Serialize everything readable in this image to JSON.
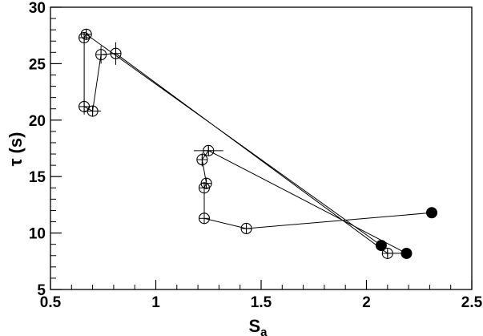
{
  "chart_data": {
    "type": "scatter",
    "title": "",
    "xlabel": "S",
    "xlabel_subscript": "a",
    "ylabel": "τ (s)",
    "xlim": [
      0.5,
      2.5
    ],
    "ylim": [
      5,
      30
    ],
    "x_ticks": [
      {
        "value": 0.5,
        "label": "0.5"
      },
      {
        "value": 1.0,
        "label": "1"
      },
      {
        "value": 1.5,
        "label": "1.5"
      },
      {
        "value": 2.0,
        "label": "2"
      },
      {
        "value": 2.5,
        "label": "2.5"
      }
    ],
    "y_ticks": [
      {
        "value": 5,
        "label": "5"
      },
      {
        "value": 10,
        "label": "10"
      },
      {
        "value": 15,
        "label": "15"
      },
      {
        "value": 20,
        "label": "20"
      },
      {
        "value": 25,
        "label": "25"
      },
      {
        "value": 30,
        "label": "30"
      }
    ],
    "grid": false,
    "connected": true,
    "points": [
      {
        "x": 2.31,
        "y": 11.8,
        "filled": true,
        "xerr": 0.0,
        "yerr": 0.0
      },
      {
        "x": 1.43,
        "y": 10.4,
        "filled": false,
        "xerr": 0.0,
        "yerr": 0.3
      },
      {
        "x": 1.23,
        "y": 11.3,
        "filled": false,
        "xerr": 0.0,
        "yerr": 0.5
      },
      {
        "x": 1.23,
        "y": 14.0,
        "filled": false,
        "xerr": 0.0,
        "yerr": 0.4
      },
      {
        "x": 1.24,
        "y": 14.4,
        "filled": false,
        "xerr": 0.0,
        "yerr": 0.5
      },
      {
        "x": 1.22,
        "y": 16.5,
        "filled": false,
        "xerr": 0.0,
        "yerr": 0.6
      },
      {
        "x": 1.25,
        "y": 17.3,
        "filled": false,
        "xerr": 0.07,
        "yerr": 0.4
      },
      {
        "x": 2.19,
        "y": 8.2,
        "filled": true,
        "xerr": 0.0,
        "yerr": 0.0
      },
      {
        "x": 2.1,
        "y": 8.2,
        "filled": false,
        "xerr": 0.0,
        "yerr": 0.3
      },
      {
        "x": 0.81,
        "y": 25.9,
        "filled": false,
        "xerr": 0.0,
        "yerr": 1.0
      },
      {
        "x": 0.74,
        "y": 25.8,
        "filled": false,
        "xerr": 0.0,
        "yerr": 0.8
      },
      {
        "x": 0.7,
        "y": 20.8,
        "filled": false,
        "xerr": 0.04,
        "yerr": 0.4
      },
      {
        "x": 0.66,
        "y": 21.2,
        "filled": false,
        "xerr": 0.0,
        "yerr": 0.7
      },
      {
        "x": 0.66,
        "y": 27.3,
        "filled": false,
        "xerr": 0.0,
        "yerr": 0.5
      },
      {
        "x": 0.67,
        "y": 27.6,
        "filled": false,
        "xerr": 0.0,
        "yerr": 0.4
      },
      {
        "x": 2.07,
        "y": 8.9,
        "filled": true,
        "xerr": 0.0,
        "yerr": 0.0
      }
    ]
  }
}
